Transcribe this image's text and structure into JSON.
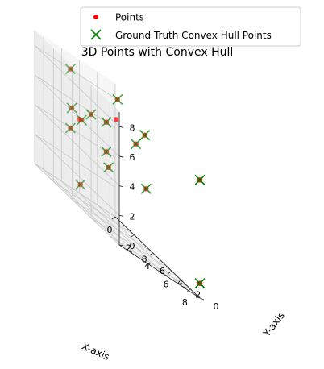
{
  "chart_data": {
    "type": "scatter",
    "title": "3D Points with Convex Hull",
    "xlabel": "X-axis",
    "ylabel": "Y-axis",
    "zlabel": "",
    "xlim": [
      0,
      9
    ],
    "ylim": [
      0,
      9
    ],
    "zlim": [
      0,
      9
    ],
    "xticks": [
      "0",
      "2",
      "4",
      "6",
      "8"
    ],
    "yticks": [
      "0",
      "2",
      "4",
      "6",
      "8"
    ],
    "zticks": [
      "0",
      "2",
      "4",
      "6",
      "8"
    ],
    "grid": true,
    "legend_placement": "top-center",
    "series": [
      {
        "name": "Points",
        "marker": "dot",
        "color": "#ff0000",
        "points": [
          [
            0,
            1,
            4
          ],
          [
            0,
            1,
            6
          ],
          [
            0,
            5,
            8
          ],
          [
            0,
            5,
            4
          ],
          [
            2,
            6,
            1
          ],
          [
            5,
            5,
            9
          ],
          [
            5,
            6,
            4
          ],
          [
            5,
            9,
            6
          ],
          [
            6,
            9,
            7
          ],
          [
            9,
            0,
            1
          ],
          [
            9,
            0,
            8
          ],
          [
            9,
            6,
            5
          ],
          [
            0,
            4,
            5
          ],
          [
            3,
            8,
            6
          ],
          [
            6,
            4,
            7
          ],
          [
            6,
            3,
            8
          ],
          [
            2,
            2,
            7
          ]
        ]
      },
      {
        "name": "Ground Truth Convex Hull Points",
        "marker": "x",
        "color": "#008000",
        "points": [
          [
            0,
            1,
            4
          ],
          [
            0,
            1,
            6
          ],
          [
            0,
            5,
            8
          ],
          [
            0,
            5,
            4
          ],
          [
            2,
            6,
            1
          ],
          [
            5,
            5,
            9
          ],
          [
            5,
            6,
            4
          ],
          [
            5,
            9,
            6
          ],
          [
            6,
            9,
            7
          ],
          [
            9,
            0,
            1
          ],
          [
            9,
            0,
            8
          ],
          [
            9,
            6,
            5
          ],
          [
            3,
            8,
            6
          ],
          [
            6,
            4,
            7
          ],
          [
            6,
            3,
            8
          ]
        ]
      }
    ]
  }
}
